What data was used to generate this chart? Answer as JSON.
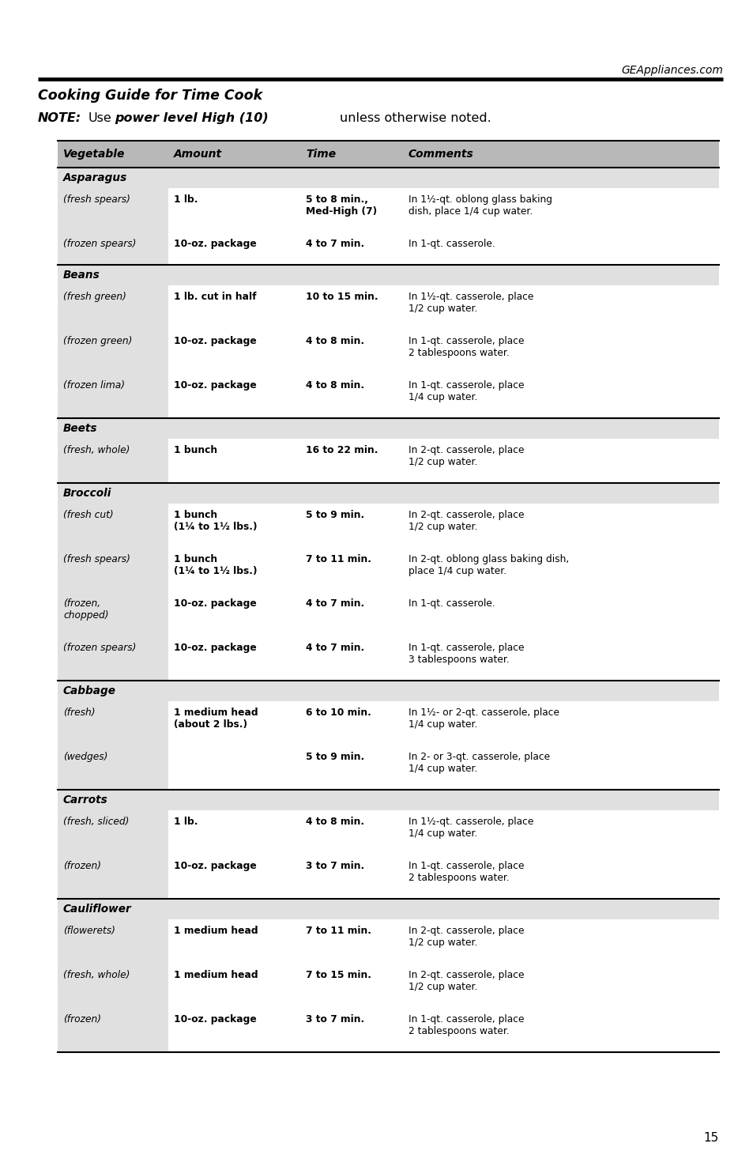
{
  "website": "GEAppliances.com",
  "title": "Cooking Guide for Time Cook",
  "col_headers": [
    "Vegetable",
    "Amount",
    "Time",
    "Comments"
  ],
  "header_bg": "#b8b8b8",
  "alt_row_bg": "#e0e0e0",
  "page_number": "15",
  "sections": [
    {
      "category": "Asparagus",
      "rows": [
        {
          "veg": "(fresh spears)",
          "amount": "1 lb.",
          "time": "5 to 8 min.,\nMed-High (7)",
          "comments": "In 1½-qt. oblong glass baking\ndish, place 1/4 cup water."
        },
        {
          "veg": "(frozen spears)",
          "amount": "10-oz. package",
          "time": "4 to 7 min.",
          "comments": "In 1-qt. casserole."
        }
      ]
    },
    {
      "category": "Beans",
      "rows": [
        {
          "veg": "(fresh green)",
          "amount": "1 lb. cut in half",
          "time": "10 to 15 min.",
          "comments": "In 1½-qt. casserole, place\n1/2 cup water."
        },
        {
          "veg": "(frozen green)",
          "amount": "10-oz. package",
          "time": "4 to 8 min.",
          "comments": "In 1-qt. casserole, place\n2 tablespoons water."
        },
        {
          "veg": "(frozen lima)",
          "amount": "10-oz. package",
          "time": "4 to 8 min.",
          "comments": "In 1-qt. casserole, place\n1/4 cup water."
        }
      ]
    },
    {
      "category": "Beets",
      "rows": [
        {
          "veg": "(fresh, whole)",
          "amount": "1 bunch",
          "time": "16 to 22 min.",
          "comments": "In 2-qt. casserole, place\n1/2 cup water."
        }
      ]
    },
    {
      "category": "Broccoli",
      "rows": [
        {
          "veg": "(fresh cut)",
          "amount": "1 bunch\n(1¼ to 1½ lbs.)",
          "time": "5 to 9 min.",
          "comments": "In 2-qt. casserole, place\n1/2 cup water."
        },
        {
          "veg": "(fresh spears)",
          "amount": "1 bunch\n(1¼ to 1½ lbs.)",
          "time": "7 to 11 min.",
          "comments": "In 2-qt. oblong glass baking dish,\nplace 1/4 cup water."
        },
        {
          "veg": "(frozen,\nchopped)",
          "amount": "10-oz. package",
          "time": "4 to 7 min.",
          "comments": "In 1-qt. casserole."
        },
        {
          "veg": "(frozen spears)",
          "amount": "10-oz. package",
          "time": "4 to 7 min.",
          "comments": "In 1-qt. casserole, place\n3 tablespoons water."
        }
      ]
    },
    {
      "category": "Cabbage",
      "rows": [
        {
          "veg": "(fresh)",
          "amount": "1 medium head\n(about 2 lbs.)",
          "time": "6 to 10 min.",
          "comments": "In 1½- or 2-qt. casserole, place\n1/4 cup water."
        },
        {
          "veg": "(wedges)",
          "amount": "",
          "time": "5 to 9 min.",
          "comments": "In 2- or 3-qt. casserole, place\n1/4 cup water."
        }
      ]
    },
    {
      "category": "Carrots",
      "rows": [
        {
          "veg": "(fresh, sliced)",
          "amount": "1 lb.",
          "time": "4 to 8 min.",
          "comments": "In 1½-qt. casserole, place\n1/4 cup water."
        },
        {
          "veg": "(frozen)",
          "amount": "10-oz. package",
          "time": "3 to 7 min.",
          "comments": "In 1-qt. casserole, place\n2 tablespoons water."
        }
      ]
    },
    {
      "category": "Cauliflower",
      "rows": [
        {
          "veg": "(flowerets)",
          "amount": "1 medium head",
          "time": "7 to 11 min.",
          "comments": "In 2-qt. casserole, place\n1/2 cup water."
        },
        {
          "veg": "(fresh, whole)",
          "amount": "1 medium head",
          "time": "7 to 15 min.",
          "comments": "In 2-qt. casserole, place\n1/2 cup water."
        },
        {
          "veg": "(frozen)",
          "amount": "10-oz. package",
          "time": "3 to 7 min.",
          "comments": "In 1-qt. casserole, place\n2 tablespoons water."
        }
      ]
    }
  ]
}
